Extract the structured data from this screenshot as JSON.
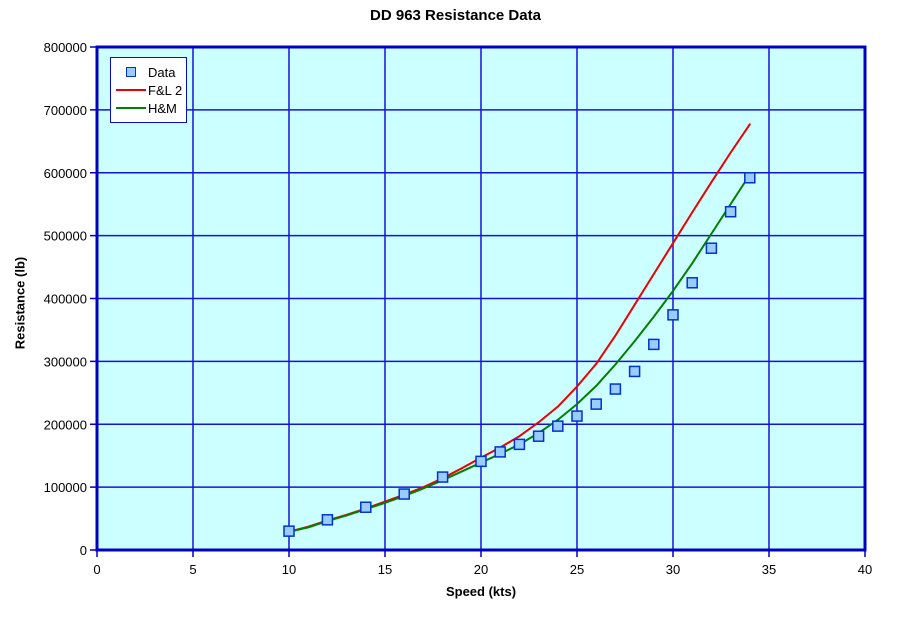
{
  "page": {
    "title": "DD 963 Resistance Data"
  },
  "axes": {
    "x_label": "Speed (kts)",
    "y_label": "Resistance (lb)"
  },
  "legend": {
    "items": [
      {
        "label": "Data",
        "symbol": "square-marker"
      },
      {
        "label": "F&L 2",
        "symbol": "red-line"
      },
      {
        "label": "H&M",
        "symbol": "green-line"
      }
    ]
  },
  "chart_data": {
    "type": "line",
    "title": "DD 963 Resistance Data",
    "xlabel": "Speed (kts)",
    "ylabel": "Resistance (lb)",
    "xlim": [
      0,
      40
    ],
    "ylim": [
      0,
      800000
    ],
    "x_ticks": [
      0,
      5,
      10,
      15,
      20,
      25,
      30,
      35,
      40
    ],
    "y_ticks": [
      0,
      100000,
      200000,
      300000,
      400000,
      500000,
      600000,
      700000,
      800000
    ],
    "grid": true,
    "legend_position": "top-left",
    "colors": {
      "plot_bg": "#ccffff",
      "gridline": "#1414d8",
      "axis": "#0000c0",
      "data_marker_fill": "#99ccff",
      "data_marker_border": "#0033cc",
      "fl2_line": "#ee0000",
      "hm_line": "#007f00"
    },
    "series": [
      {
        "name": "Data",
        "type": "scatter",
        "marker": "square",
        "x": [
          10,
          12,
          14,
          16,
          18,
          20,
          21,
          22,
          23,
          24,
          25,
          26,
          27,
          28,
          29,
          30,
          31,
          32,
          33,
          34
        ],
        "y": [
          30000,
          48000,
          68000,
          89000,
          116000,
          141000,
          156000,
          168000,
          181000,
          197000,
          213000,
          232000,
          256000,
          284000,
          327000,
          374000,
          425000,
          480000,
          538000,
          592000
        ]
      },
      {
        "name": "F&L 2",
        "type": "line",
        "x": [
          10,
          11,
          12,
          13,
          14,
          15,
          16,
          17,
          18,
          19,
          20,
          21,
          22,
          23,
          24,
          25,
          26,
          27,
          28,
          29,
          30,
          31,
          32,
          33,
          34
        ],
        "y": [
          29000,
          37000,
          47000,
          56000,
          66000,
          77000,
          88000,
          100000,
          114000,
          130000,
          147000,
          163000,
          181000,
          203000,
          228000,
          260000,
          296000,
          341000,
          390000,
          439000,
          488000,
          537000,
          585000,
          632000,
          677000
        ]
      },
      {
        "name": "H&M",
        "type": "line",
        "x": [
          10,
          11,
          12,
          13,
          14,
          15,
          16,
          17,
          18,
          19,
          20,
          21,
          22,
          23,
          24,
          25,
          26,
          27,
          28,
          29,
          30,
          31,
          32,
          33,
          34
        ],
        "y": [
          29000,
          36000,
          46000,
          55000,
          65000,
          75000,
          86000,
          98000,
          111000,
          125000,
          139000,
          153000,
          168000,
          186000,
          207000,
          232000,
          261000,
          295000,
          332000,
          371000,
          412000,
          456000,
          503000,
          550000,
          597000
        ]
      }
    ]
  }
}
